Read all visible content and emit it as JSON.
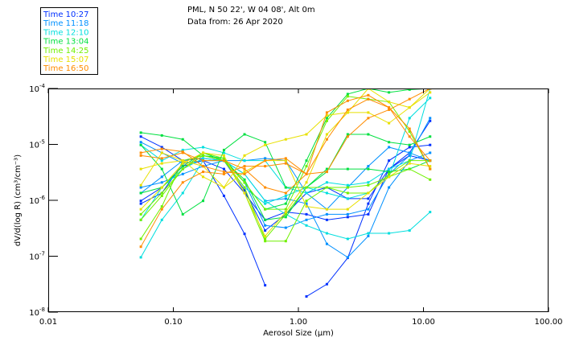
{
  "header": {
    "title_line1": "PML, N 50 22', W 04 08', Alt 0m",
    "title_line2": "Data from: 26 Apr 2020"
  },
  "chart_data": {
    "type": "line",
    "title": "PML, N 50 22', W 04 08', Alt 0m — Data from: 26 Apr 2020",
    "xlabel": "Aerosol Size (µm)",
    "ylabel": "dV/d(log R) (cm³/cm⁻³)",
    "x_scale": "log",
    "y_scale": "log",
    "xlim": [
      0.01,
      100
    ],
    "ylim": [
      1e-08,
      0.0001
    ],
    "x_ticks": [
      "0.01",
      "0.10",
      "1.00",
      "10.00",
      "100.00"
    ],
    "y_ticks": [
      {
        "base": "10",
        "exp": "-4",
        "value": -4
      },
      {
        "base": "10",
        "exp": "-5",
        "value": -5
      },
      {
        "base": "10",
        "exp": "-6",
        "value": -6
      },
      {
        "base": "10",
        "exp": "-7",
        "value": -7
      },
      {
        "base": "10",
        "exp": "-8",
        "value": -8
      }
    ],
    "legend_position": "top-left",
    "x": [
      0.055,
      0.081,
      0.119,
      0.173,
      0.254,
      0.371,
      0.542,
      0.793,
      1.16,
      1.69,
      2.48,
      3.62,
      5.3,
      7.74,
      11.3
    ],
    "y_units_note": "values are log10 of dV/d(log R)",
    "groups": [
      {
        "label": "Time 10:27",
        "color": "#0030ff",
        "series": [
          [
            -4.86,
            -5.05,
            -5.29,
            -5.25,
            -5.29,
            -5.82,
            -6.54,
            -6.25,
            -5.87,
            -5.77,
            -5.97,
            -5.97,
            -5.44,
            -5.15,
            -4.58
          ],
          [
            -6.01,
            -5.77,
            -5.39,
            -5.29,
            -5.92,
            -6.6,
            -7.52,
            null,
            -7.72,
            -7.5,
            -7.03,
            -6.06,
            -5.29,
            -5.05,
            -5.01
          ],
          [
            -6.06,
            -5.87,
            -5.34,
            -5.29,
            -5.44,
            -5.87,
            -6.35,
            -6.21,
            -6.25,
            -6.35,
            -6.3,
            -6.25,
            -5.44,
            -5.2,
            -5.29
          ]
        ]
      },
      {
        "label": "Time 11:18",
        "color": "#0090ff",
        "series": [
          [
            -4.96,
            -5.15,
            -5.34,
            -5.29,
            -5.29,
            -5.68,
            -6.45,
            -6.49,
            -6.35,
            -6.25,
            -6.25,
            -6.16,
            -5.53,
            -5.2,
            -4.53
          ],
          [
            -5.77,
            -5.68,
            -5.53,
            -5.39,
            -5.29,
            -5.29,
            -5.25,
            -5.29,
            -5.87,
            -6.16,
            -5.77,
            -5.39,
            -5.05,
            -5.15,
            -5.29
          ],
          [
            -5.87,
            -5.58,
            -5.29,
            -5.2,
            -5.29,
            -5.53,
            -6.01,
            -5.97,
            -6.06,
            -6.78,
            -7.02,
            -6.64,
            -5.77,
            -5.29,
            -5.15
          ]
        ]
      },
      {
        "label": "Time 12:10",
        "color": "#00dede",
        "series": [
          [
            -7.02,
            -6.35,
            -5.87,
            -5.29,
            -5.29,
            -5.53,
            -6.01,
            -6.25,
            -6.45,
            -6.59,
            -6.69,
            -6.59,
            -6.59,
            -6.54,
            -6.21
          ],
          [
            -5.01,
            -5.29,
            -5.1,
            -5.05,
            -5.15,
            -5.29,
            -5.29,
            -5.77,
            -5.87,
            -5.68,
            -5.73,
            -5.68,
            -5.44,
            -5.29,
            -4.0
          ],
          [
            -6.35,
            -5.77,
            -5.44,
            -5.25,
            -5.29,
            -5.77,
            -6.06,
            -5.92,
            -5.77,
            -5.87,
            -5.97,
            -5.87,
            -5.58,
            -4.53,
            -4.17
          ]
        ]
      },
      {
        "label": "Time 13:04",
        "color": "#00e040",
        "series": [
          [
            -4.79,
            -4.84,
            -4.91,
            -5.2,
            -5.25,
            -5.68,
            -6.16,
            -6.06,
            -5.29,
            -4.53,
            -4.1,
            -4.0,
            -4.07,
            -4.02,
            -4.0
          ],
          [
            -5.01,
            -5.44,
            -6.25,
            -6.01,
            -5.1,
            -4.82,
            -4.96,
            -5.77,
            -5.77,
            -5.44,
            -5.44,
            -5.44,
            -5.49,
            -5.44,
            -5.29
          ],
          [
            -5.87,
            -5.77,
            -5.39,
            -5.15,
            -5.29,
            -5.63,
            -6.35,
            -6.3,
            -5.77,
            -5.49,
            -4.82,
            -4.82,
            -4.96,
            -5.01,
            -4.86
          ]
        ]
      },
      {
        "label": "Time 14:25",
        "color": "#70f000",
        "series": [
          [
            -6.69,
            -6.11,
            -5.29,
            -5.2,
            -5.29,
            -5.77,
            -6.69,
            -6.25,
            -5.77,
            -5.77,
            -5.87,
            -5.87,
            -5.53,
            -5.29,
            -5.29
          ],
          [
            -6.25,
            -5.87,
            -5.44,
            -5.2,
            -5.29,
            -5.68,
            -6.16,
            -6.16,
            -5.39,
            -4.58,
            -4.14,
            -4.19,
            -4.24,
            -4.77,
            -5.44
          ],
          [
            -6.35,
            -5.92,
            -5.44,
            -5.15,
            -5.25,
            -5.87,
            -6.73,
            -6.73,
            -6.01,
            -5.77,
            -5.77,
            -5.73,
            -5.58,
            -5.44,
            -5.63
          ]
        ]
      },
      {
        "label": "Time 15:07",
        "color": "#e8e000",
        "series": [
          [
            -5.73,
            -5.15,
            -5.29,
            -5.39,
            -5.77,
            -5.2,
            -5.01,
            -4.91,
            -4.82,
            -4.48,
            -4.43,
            -4.43,
            -4.62,
            -4.34,
            -4.07
          ],
          [
            -5.44,
            -5.34,
            -5.29,
            -5.58,
            -5.77,
            -5.49,
            -5.29,
            -5.29,
            -6.11,
            -6.16,
            -6.16,
            -5.87,
            -5.58,
            -5.34,
            -5.39
          ],
          [
            -6.16,
            -5.77,
            -5.34,
            -5.15,
            -5.2,
            -5.87,
            -6.64,
            -6.21,
            -5.68,
            -4.82,
            -4.43,
            -4.0,
            -4.24,
            -4.34,
            -4.0
          ]
        ]
      },
      {
        "label": "Time 16:50",
        "color": "#ff8c00",
        "series": [
          [
            -6.83,
            -6.16,
            -5.68,
            -5.49,
            -5.53,
            -5.39,
            -5.39,
            -5.34,
            -5.53,
            -5.49,
            -4.86,
            -4.53,
            -4.38,
            -4.19,
            -4.0
          ],
          [
            -5.15,
            -5.08,
            -5.13,
            -5.39,
            -5.49,
            -5.53,
            -5.29,
            -5.25,
            -5.53,
            -4.91,
            -4.38,
            -4.19,
            -4.34,
            -4.86,
            -5.29
          ],
          [
            -5.2,
            -5.25,
            -5.15,
            -5.29,
            -5.29,
            -5.44,
            -5.77,
            -5.87,
            -5.53,
            -4.43,
            -4.22,
            -4.12,
            -4.34,
            -4.72,
            -5.44
          ]
        ]
      }
    ]
  }
}
